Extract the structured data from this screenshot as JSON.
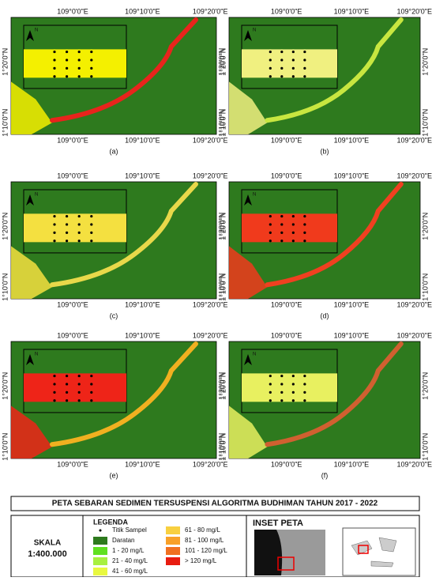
{
  "lon_labels": [
    "109°0'0\"E",
    "109°10'0\"E",
    "109°20'0\"E"
  ],
  "lat_labels": [
    "1°20'0\"N",
    "1°10'0\"N"
  ],
  "north": "N",
  "panels": [
    {
      "label": "(a)",
      "river_color": "#e8241c",
      "inset_color": "#f4f000"
    },
    {
      "label": "(b)",
      "river_color": "#c8e640",
      "inset_color": "#f0f080"
    },
    {
      "label": "(c)",
      "river_color": "#e8d84a",
      "inset_color": "#f4e040"
    },
    {
      "label": "(d)",
      "river_color": "#f04020",
      "inset_color": "#f03a1c"
    },
    {
      "label": "(e)",
      "river_color": "#f0b020",
      "inset_color": "#ee2418"
    },
    {
      "label": "(f)",
      "river_color": "#d06030",
      "inset_color": "#e8f060"
    }
  ],
  "title": "PETA SEBARAN SEDIMEN TERSUSPENSI ALGORITMA BUDHIMAN TAHUN 2017 - 2022",
  "scale_label": "SKALA",
  "scale_value": "1:400.000",
  "legend_title": "LEGENDA",
  "legend": [
    {
      "name": "Titik Sampel",
      "color": "#000000"
    },
    {
      "name": "Daratan",
      "color": "#2e7a1e"
    },
    {
      "name": "1 - 20 mg/L",
      "color": "#60e020"
    },
    {
      "name": "21 - 40 mg/L",
      "color": "#a8f040"
    },
    {
      "name": "41 - 60 mg/L",
      "color": "#e8f840"
    },
    {
      "name": "61 - 80 mg/L",
      "color": "#f8d040"
    },
    {
      "name": "81 - 100 mg/L",
      "color": "#f8a028"
    },
    {
      "name": "101 - 120 mg/L",
      "color": "#f07020"
    },
    {
      "name": "> 120 mg/L",
      "color": "#e81c10"
    }
  ],
  "inset_title": "INSET PETA"
}
